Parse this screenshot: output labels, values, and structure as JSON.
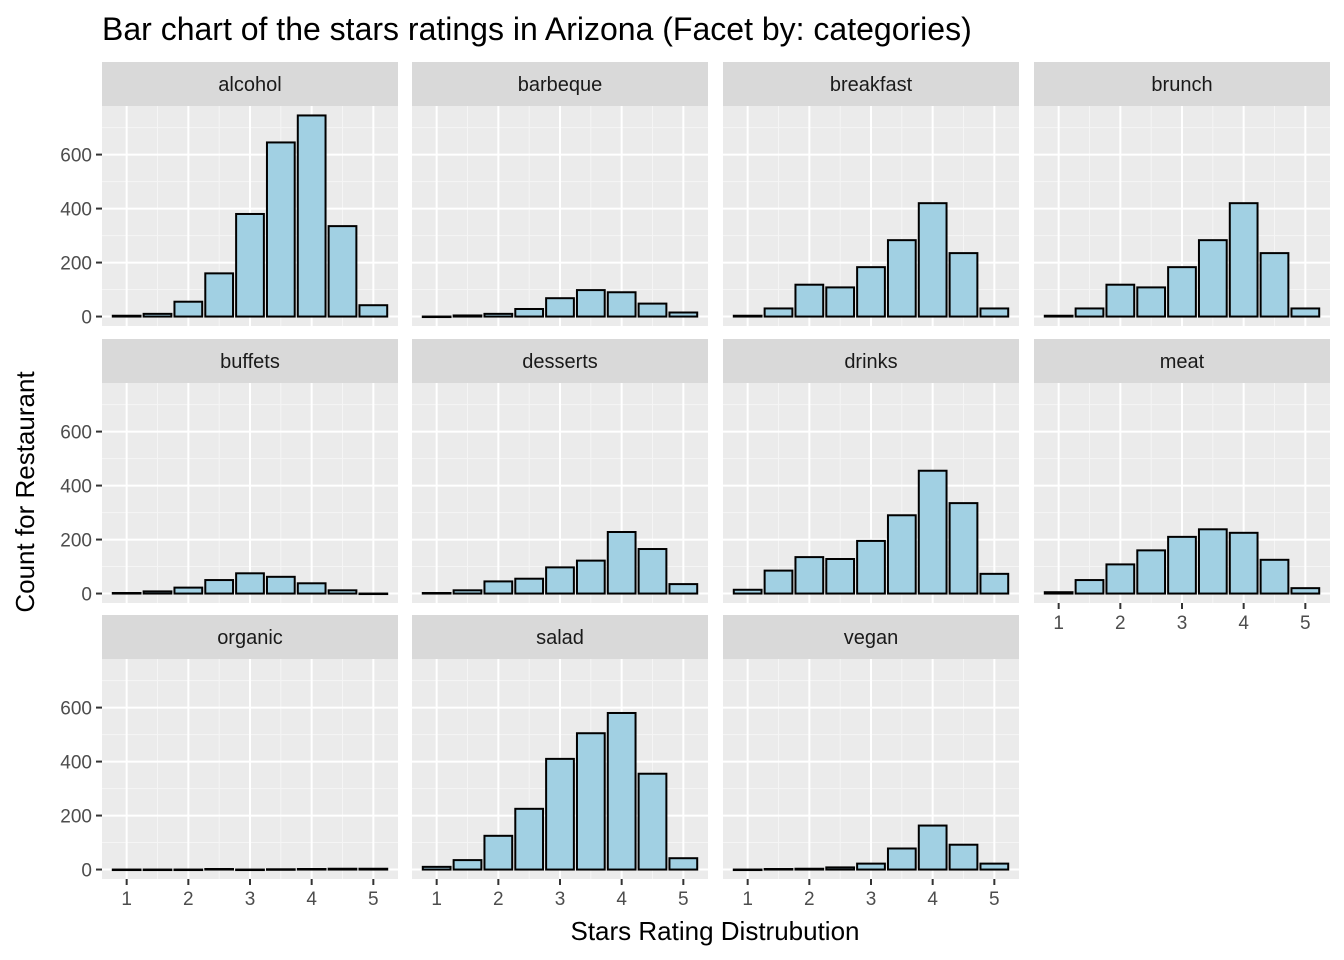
{
  "chart_data": {
    "type": "bar",
    "title": "Bar chart of the stars ratings in Arizona (Facet by: categories)",
    "xlabel": "Stars Rating Distrubution",
    "ylabel": "Count for Restaurant",
    "x_values": [
      1,
      1.5,
      2,
      2.5,
      3,
      3.5,
      4,
      4.5,
      5
    ],
    "xticks": [
      "1",
      "2",
      "3",
      "4",
      "5"
    ],
    "yticks": [
      "0",
      "200",
      "400",
      "600"
    ],
    "xlim": [
      0.6,
      5.4
    ],
    "ylim": [
      -35,
      780
    ],
    "layout": "facet_wrap, 4 columns",
    "grid": true,
    "bar_fill": "#a1d0e3",
    "bar_outline": "#000000",
    "panel_background": "#ebebeb",
    "strip_background": "#d9d9d9",
    "panels": [
      {
        "name": "alcohol",
        "values": [
          3,
          10,
          55,
          160,
          380,
          645,
          745,
          335,
          42
        ]
      },
      {
        "name": "barbeque",
        "values": [
          0,
          4,
          10,
          28,
          68,
          98,
          90,
          48,
          15
        ]
      },
      {
        "name": "breakfast",
        "values": [
          3,
          30,
          118,
          108,
          183,
          283,
          420,
          235,
          30
        ]
      },
      {
        "name": "brunch",
        "values": [
          3,
          30,
          118,
          108,
          183,
          283,
          420,
          235,
          30
        ]
      },
      {
        "name": "buffets",
        "values": [
          2,
          8,
          22,
          50,
          75,
          62,
          38,
          12,
          0
        ]
      },
      {
        "name": "desserts",
        "values": [
          2,
          12,
          45,
          55,
          97,
          122,
          228,
          165,
          35
        ]
      },
      {
        "name": "drinks",
        "values": [
          14,
          85,
          135,
          128,
          195,
          290,
          455,
          335,
          73
        ]
      },
      {
        "name": "meat",
        "values": [
          5,
          50,
          108,
          160,
          210,
          238,
          225,
          125,
          20
        ]
      },
      {
        "name": "organic",
        "values": [
          0,
          0,
          0,
          2,
          0,
          1,
          2,
          3,
          3
        ]
      },
      {
        "name": "salad",
        "values": [
          10,
          35,
          125,
          225,
          410,
          505,
          580,
          355,
          42
        ]
      },
      {
        "name": "vegan",
        "values": [
          0,
          2,
          3,
          8,
          22,
          78,
          163,
          92,
          22
        ]
      }
    ]
  }
}
